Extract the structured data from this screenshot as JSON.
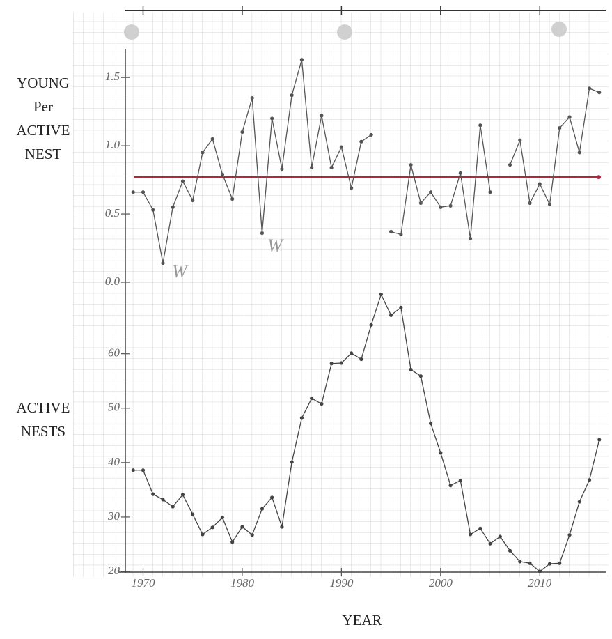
{
  "chart_data": [
    {
      "type": "line",
      "ylabel": [
        "YOUNG",
        "Per",
        "ACTIVE",
        "NEST"
      ],
      "x": [
        1969,
        1970,
        1971,
        1972,
        1973,
        1974,
        1975,
        1976,
        1977,
        1978,
        1979,
        1980,
        1981,
        1982,
        1983,
        1984,
        1985,
        1986,
        1987,
        1988,
        1989,
        1990,
        1991,
        1992,
        1993,
        1994,
        1995,
        1996,
        1997,
        1998,
        1999,
        2000,
        2001,
        2002,
        2003,
        2004,
        2005,
        2006,
        2007,
        2008,
        2009,
        2010,
        2011,
        2012,
        2013,
        2014,
        2015,
        2016
      ],
      "series": [
        {
          "color": "#555555",
          "values": [
            0.66,
            0.66,
            0.53,
            0.14,
            0.55,
            0.74,
            0.6,
            0.95,
            1.05,
            0.79,
            0.61,
            1.1,
            1.35,
            0.36,
            1.2,
            0.83,
            1.37,
            1.63,
            0.84,
            1.22,
            0.84,
            0.99,
            0.69,
            1.03,
            1.08,
            null,
            0.37,
            0.35,
            0.86,
            0.58,
            0.66,
            0.55,
            0.56,
            0.8,
            0.32,
            1.15,
            0.66,
            null,
            0.86,
            1.04,
            0.58,
            0.72,
            0.57,
            1.13,
            1.21,
            0.95,
            1.42,
            1.39
          ]
        }
      ],
      "reference_line": {
        "value": 0.77,
        "color": "#b0283c"
      },
      "annotations": [
        "W",
        "W"
      ],
      "xlim": [
        1968,
        2017
      ],
      "ylim": [
        0,
        1.7
      ],
      "yticks": [
        {
          "value": 0,
          "label": "0.0"
        },
        0.5,
        {
          "value": 1,
          "label": "1.0"
        },
        1.5
      ],
      "grid": true
    },
    {
      "type": "line",
      "ylabel": [
        "ACTIVE",
        "NESTS"
      ],
      "xlabel": "YEAR",
      "x": [
        1969,
        1970,
        1971,
        1972,
        1973,
        1974,
        1975,
        1976,
        1977,
        1978,
        1979,
        1980,
        1981,
        1982,
        1983,
        1984,
        1985,
        1986,
        1987,
        1988,
        1989,
        1990,
        1991,
        1992,
        1993,
        1994,
        1995,
        1996,
        1997,
        1998,
        1999,
        2000,
        2001,
        2002,
        2003,
        2004,
        2005,
        2006,
        2007,
        2008,
        2009,
        2010,
        2011,
        2012,
        2013,
        2014,
        2015,
        2016
      ],
      "series": [
        {
          "color": "#444444",
          "values": [
            38.6,
            38.6,
            34.2,
            33.2,
            31.9,
            34.1,
            30.5,
            26.8,
            28.1,
            29.9,
            25.4,
            28.2,
            26.7,
            31.5,
            33.6,
            28.2,
            40.1,
            48.2,
            51.8,
            50.8,
            58.2,
            58.3,
            60.1,
            59,
            65.3,
            70.9,
            67.1,
            68.5,
            57.1,
            55.9,
            47.2,
            41.8,
            35.8,
            36.7,
            26.8,
            27.9,
            25.1,
            26.4,
            23.8,
            21.8,
            21.5,
            20,
            21.4,
            21.5,
            26.7,
            32.8,
            36.8,
            44.2
          ]
        }
      ],
      "xlim": [
        1968,
        2017
      ],
      "xticks": [
        1970,
        1980,
        1990,
        2000,
        2010
      ],
      "ylim": [
        20,
        72
      ],
      "yticks": [
        20,
        30,
        40,
        50,
        60
      ],
      "grid": true
    }
  ]
}
